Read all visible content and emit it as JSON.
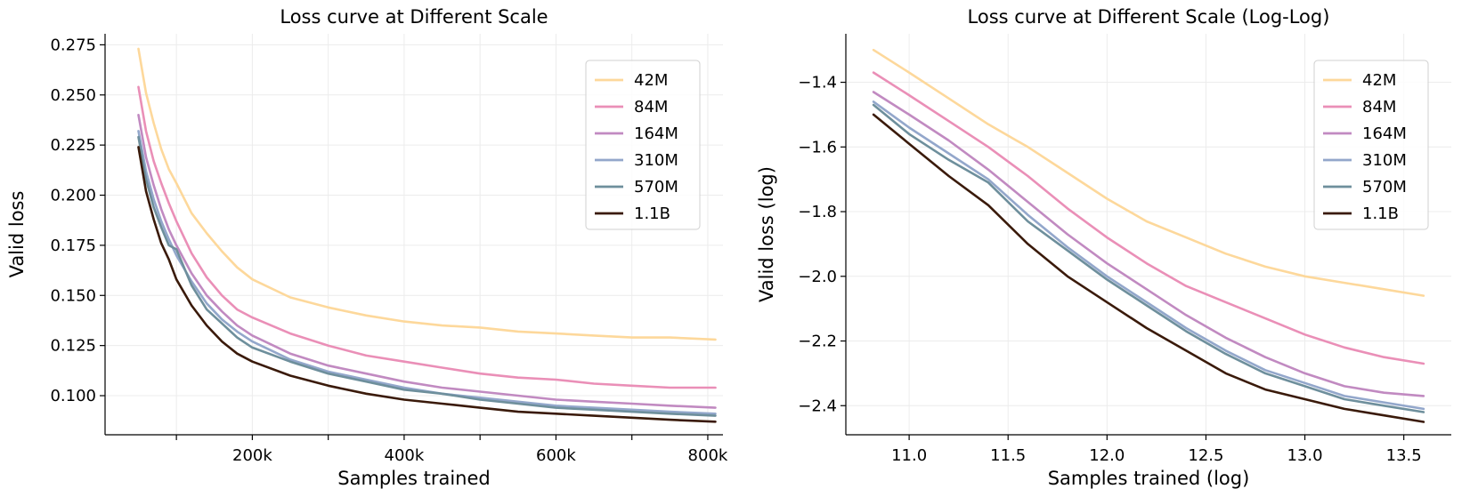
{
  "colors": {
    "42M": "#fdd89b",
    "84M": "#ea8fb7",
    "164M": "#c18ac1",
    "310M": "#93a7cb",
    "570M": "#6e8f9c",
    "1.1B": "#3a1a0a"
  },
  "chart_data": [
    {
      "type": "line",
      "title": "Loss curve at Different Scale",
      "xlabel": "Samples trained",
      "ylabel": "Valid loss",
      "xlim": [
        6000,
        820000
      ],
      "ylim": [
        0.0805,
        0.2805
      ],
      "xticks": [
        {
          "value": 100000,
          "label": ""
        },
        {
          "value": 200000,
          "label": "200k"
        },
        {
          "value": 300000,
          "label": ""
        },
        {
          "value": 400000,
          "label": "400k"
        },
        {
          "value": 500000,
          "label": ""
        },
        {
          "value": 600000,
          "label": "600k"
        },
        {
          "value": 700000,
          "label": ""
        },
        {
          "value": 800000,
          "label": "800k"
        }
      ],
      "yticks": [
        {
          "value": 0.1,
          "label": "0.100"
        },
        {
          "value": 0.125,
          "label": "0.125"
        },
        {
          "value": 0.15,
          "label": "0.150"
        },
        {
          "value": 0.175,
          "label": "0.175"
        },
        {
          "value": 0.2,
          "label": "0.200"
        },
        {
          "value": 0.225,
          "label": "0.225"
        },
        {
          "value": 0.25,
          "label": "0.250"
        },
        {
          "value": 0.275,
          "label": "0.275"
        }
      ],
      "legend_position": "top-right",
      "x": [
        50000,
        60000,
        70000,
        80000,
        90000,
        100000,
        120000,
        140000,
        160000,
        180000,
        200000,
        250000,
        300000,
        350000,
        400000,
        450000,
        500000,
        550000,
        600000,
        650000,
        700000,
        750000,
        810000
      ],
      "series": [
        {
          "name": "42M",
          "values": [
            0.273,
            0.251,
            0.236,
            0.223,
            0.213,
            0.206,
            0.191,
            0.181,
            0.172,
            0.164,
            0.158,
            0.149,
            0.144,
            0.14,
            0.137,
            0.135,
            0.134,
            0.132,
            0.131,
            0.13,
            0.129,
            0.129,
            0.128
          ]
        },
        {
          "name": "84M",
          "values": [
            0.254,
            0.232,
            0.217,
            0.206,
            0.196,
            0.187,
            0.171,
            0.159,
            0.15,
            0.143,
            0.139,
            0.131,
            0.125,
            0.12,
            0.117,
            0.114,
            0.111,
            0.109,
            0.108,
            0.106,
            0.105,
            0.104,
            0.104
          ]
        },
        {
          "name": "164M",
          "values": [
            0.24,
            0.219,
            0.205,
            0.193,
            0.183,
            0.175,
            0.161,
            0.15,
            0.142,
            0.135,
            0.13,
            0.121,
            0.115,
            0.111,
            0.107,
            0.104,
            0.102,
            0.1,
            0.098,
            0.097,
            0.096,
            0.095,
            0.094
          ]
        },
        {
          "name": "310M",
          "values": [
            0.232,
            0.212,
            0.198,
            0.187,
            0.178,
            0.17,
            0.157,
            0.146,
            0.138,
            0.132,
            0.127,
            0.118,
            0.112,
            0.108,
            0.104,
            0.101,
            0.099,
            0.097,
            0.095,
            0.094,
            0.093,
            0.092,
            0.091
          ]
        },
        {
          "name": "570M",
          "values": [
            0.229,
            0.208,
            0.194,
            0.184,
            0.175,
            0.173,
            0.155,
            0.143,
            0.136,
            0.129,
            0.124,
            0.117,
            0.111,
            0.107,
            0.103,
            0.101,
            0.098,
            0.096,
            0.094,
            0.093,
            0.092,
            0.091,
            0.09
          ]
        },
        {
          "name": "1.1B",
          "values": [
            0.224,
            0.202,
            0.188,
            0.176,
            0.168,
            0.158,
            0.145,
            0.135,
            0.127,
            0.121,
            0.117,
            0.11,
            0.105,
            0.101,
            0.098,
            0.096,
            0.094,
            0.092,
            0.091,
            0.09,
            0.089,
            0.088,
            0.087
          ]
        }
      ]
    },
    {
      "type": "line",
      "title": "Loss curve at Different Scale (Log-Log)",
      "xlabel": "Samples trained (log)",
      "ylabel": "Valid loss (log)",
      "xlim": [
        10.68,
        13.74
      ],
      "ylim": [
        -2.49,
        -1.25
      ],
      "xticks": [
        {
          "value": 11.0,
          "label": "11.0"
        },
        {
          "value": 11.5,
          "label": "11.5"
        },
        {
          "value": 12.0,
          "label": "12.0"
        },
        {
          "value": 12.5,
          "label": "12.5"
        },
        {
          "value": 13.0,
          "label": "13.0"
        },
        {
          "value": 13.5,
          "label": "13.5"
        }
      ],
      "yticks": [
        {
          "value": -2.4,
          "label": "−2.4"
        },
        {
          "value": -2.2,
          "label": "−2.2"
        },
        {
          "value": -2.0,
          "label": "−2.0"
        },
        {
          "value": -1.8,
          "label": "−1.8"
        },
        {
          "value": -1.6,
          "label": "−1.6"
        },
        {
          "value": -1.4,
          "label": "−1.4"
        }
      ],
      "legend_position": "top-right",
      "x": [
        10.82,
        11.0,
        11.2,
        11.4,
        11.6,
        11.8,
        12.0,
        12.2,
        12.4,
        12.6,
        12.8,
        13.0,
        13.2,
        13.4,
        13.6
      ],
      "series": [
        {
          "name": "42M",
          "values": [
            -1.3,
            -1.37,
            -1.45,
            -1.53,
            -1.6,
            -1.68,
            -1.76,
            -1.83,
            -1.88,
            -1.93,
            -1.97,
            -2.0,
            -2.02,
            -2.04,
            -2.06
          ]
        },
        {
          "name": "84M",
          "values": [
            -1.37,
            -1.44,
            -1.52,
            -1.6,
            -1.69,
            -1.79,
            -1.88,
            -1.96,
            -2.03,
            -2.08,
            -2.13,
            -2.18,
            -2.22,
            -2.25,
            -2.27
          ]
        },
        {
          "name": "164M",
          "values": [
            -1.43,
            -1.5,
            -1.58,
            -1.67,
            -1.77,
            -1.87,
            -1.96,
            -2.04,
            -2.12,
            -2.19,
            -2.25,
            -2.3,
            -2.34,
            -2.36,
            -2.37
          ]
        },
        {
          "name": "310M",
          "values": [
            -1.46,
            -1.54,
            -1.62,
            -1.7,
            -1.81,
            -1.91,
            -2.0,
            -2.08,
            -2.16,
            -2.23,
            -2.29,
            -2.33,
            -2.37,
            -2.39,
            -2.41
          ]
        },
        {
          "name": "570M",
          "values": [
            -1.47,
            -1.56,
            -1.64,
            -1.71,
            -1.83,
            -1.92,
            -2.01,
            -2.09,
            -2.17,
            -2.24,
            -2.3,
            -2.34,
            -2.38,
            -2.4,
            -2.42
          ]
        },
        {
          "name": "1.1B",
          "values": [
            -1.5,
            -1.59,
            -1.69,
            -1.78,
            -1.9,
            -2.0,
            -2.08,
            -2.16,
            -2.23,
            -2.3,
            -2.35,
            -2.38,
            -2.41,
            -2.43,
            -2.45
          ]
        }
      ]
    }
  ]
}
